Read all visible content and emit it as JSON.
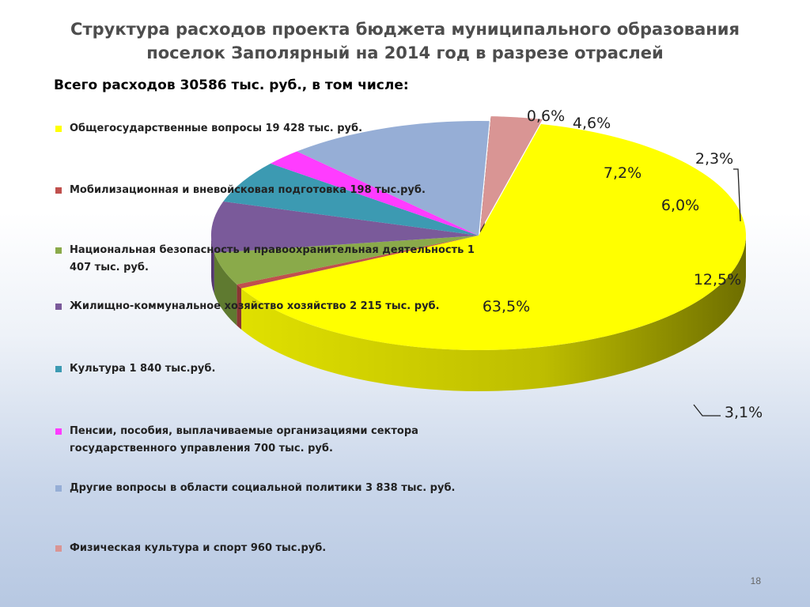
{
  "title": "Структура расходов проекта бюджета муниципального образования поселок Заполярный на 2014 год в разрезе отраслей",
  "subtitle": "Всего расходов 30586 тыс. руб., в том числе:",
  "page_number": "18",
  "chart_data": {
    "type": "pie",
    "title": "Структура расходов проекта бюджета муниципального образования поселок Заполярный на 2014 год в разрезе отраслей",
    "total_label": "Всего расходов 30586 тыс. руб., в том числе:",
    "legend_position": "left",
    "slices": [
      {
        "label": "Общегосударственные вопросы  19 428 тыс. руб.",
        "value": 63.5,
        "pct_label": "63,5%",
        "color": "#ffff00",
        "side": "#c8c800"
      },
      {
        "label": "Мобилизационная и вневойсковая подготовка  198 тыс.руб.",
        "value": 0.6,
        "pct_label": "0,6%",
        "color": "#c0504d",
        "side": "#8a3533"
      },
      {
        "label": "Национальная безопасность и правоохранительная  деятельность 1 407 тыс. руб.",
        "value": 4.6,
        "pct_label": "4,6%",
        "color": "#8aaa4a",
        "side": "#5f7a30"
      },
      {
        "label": "Жилищно-коммунальное хозяйство хозяйство 2 215 тыс. руб.",
        "value": 7.2,
        "pct_label": "7,2%",
        "color": "#7a5a9a",
        "side": "#54386e"
      },
      {
        "label": "Культура 1 840 тыс.руб.",
        "value": 6.0,
        "pct_label": "6,0%",
        "color": "#3c9ab2",
        "side": "#236a7c"
      },
      {
        "label": "Пенсии, пособия, выплачиваемые организациями сектора государственного управления 700 тыс. руб.",
        "value": 2.3,
        "pct_label": "2,3%",
        "color": "#ff3cff",
        "side": "#b82ab8"
      },
      {
        "label": "Другие вопросы в области социальной политики 3 838 тыс. руб.",
        "value": 12.5,
        "pct_label": "12,5%",
        "color": "#96aed6",
        "side": "#3a4a5c"
      },
      {
        "label": "Физическая культура и спорт 960 тыс.руб.",
        "value": 3.1,
        "pct_label": "3,1%",
        "color": "#d99594",
        "side": "#5a3538"
      }
    ]
  }
}
